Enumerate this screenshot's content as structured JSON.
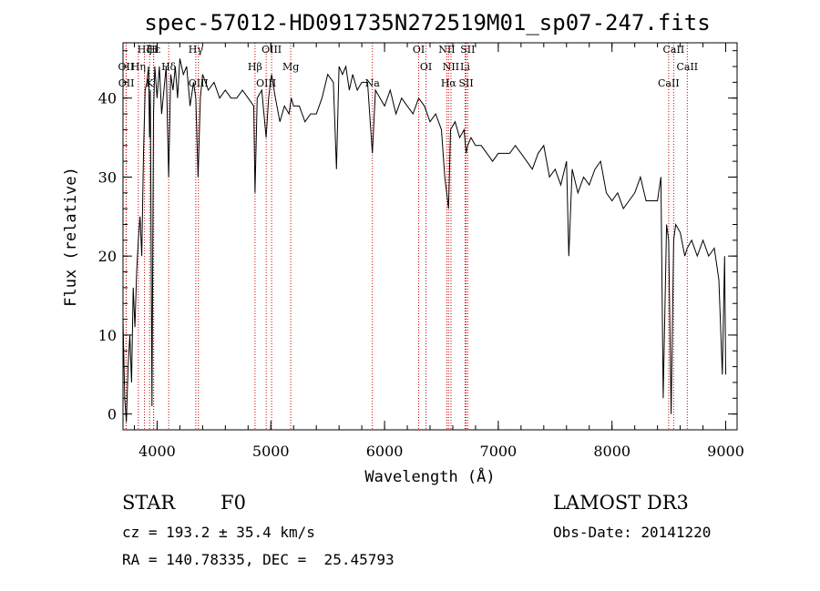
{
  "chart_data": {
    "type": "line",
    "title": "spec-57012-HD091735N272519M01_sp07-247.fits",
    "xlabel": "Wavelength (Å)",
    "ylabel": "Flux (relative)",
    "xlim": [
      3700,
      9100
    ],
    "ylim": [
      -2,
      47
    ],
    "x_ticks": [
      4000,
      5000,
      6000,
      7000,
      8000,
      9000
    ],
    "y_ticks": [
      0,
      10,
      20,
      30,
      40
    ],
    "series": [
      {
        "name": "flux",
        "x": [
          3700,
          3715,
          3730,
          3745,
          3760,
          3775,
          3790,
          3805,
          3820,
          3835,
          3850,
          3865,
          3880,
          3895,
          3910,
          3925,
          3933,
          3940,
          3955,
          3968,
          3980,
          4000,
          4020,
          4040,
          4060,
          4080,
          4101,
          4120,
          4140,
          4160,
          4180,
          4200,
          4230,
          4260,
          4290,
          4320,
          4340,
          4360,
          4380,
          4400,
          4450,
          4500,
          4550,
          4600,
          4650,
          4700,
          4750,
          4800,
          4850,
          4861,
          4880,
          4920,
          4959,
          4980,
          5007,
          5040,
          5080,
          5120,
          5160,
          5180,
          5200,
          5250,
          5300,
          5350,
          5400,
          5450,
          5500,
          5550,
          5577,
          5600,
          5630,
          5660,
          5690,
          5720,
          5760,
          5800,
          5850,
          5893,
          5920,
          5960,
          6000,
          6050,
          6100,
          6150,
          6200,
          6250,
          6300,
          6350,
          6400,
          6450,
          6500,
          6530,
          6563,
          6580,
          6620,
          6660,
          6700,
          6717,
          6731,
          6760,
          6800,
          6850,
          6900,
          6950,
          7000,
          7050,
          7100,
          7150,
          7200,
          7250,
          7300,
          7350,
          7400,
          7450,
          7500,
          7550,
          7600,
          7620,
          7650,
          7700,
          7750,
          7800,
          7850,
          7900,
          7950,
          8000,
          8050,
          8100,
          8150,
          8200,
          8250,
          8300,
          8350,
          8400,
          8430,
          8450,
          8480,
          8498,
          8520,
          8542,
          8560,
          8600,
          8640,
          8662,
          8700,
          8750,
          8800,
          8850,
          8900,
          8940,
          8970,
          8990,
          9000
        ],
        "values": [
          12,
          2,
          -1,
          6,
          10,
          4,
          16,
          11,
          18,
          22,
          25,
          20,
          33,
          41,
          42,
          44,
          35,
          41,
          1,
          38,
          44,
          40,
          44,
          38,
          41,
          44,
          30,
          43,
          41,
          44,
          40,
          45,
          43,
          44,
          39,
          42,
          40,
          30,
          40,
          43,
          41,
          42,
          40,
          41,
          40,
          40,
          41,
          40,
          39,
          28,
          40,
          41,
          35,
          40,
          43,
          40,
          37,
          39,
          38,
          40,
          39,
          39,
          37,
          38,
          38,
          40,
          43,
          42,
          31,
          44,
          43,
          44,
          41,
          43,
          41,
          42,
          42,
          33,
          41,
          40,
          39,
          41,
          38,
          40,
          39,
          38,
          40,
          39,
          37,
          38,
          36,
          30,
          26,
          36,
          37,
          35,
          36,
          33,
          34,
          35,
          34,
          34,
          33,
          32,
          33,
          33,
          33,
          34,
          33,
          32,
          31,
          33,
          34,
          30,
          31,
          29,
          32,
          20,
          31,
          28,
          30,
          29,
          31,
          32,
          28,
          27,
          28,
          26,
          27,
          28,
          30,
          27,
          27,
          27,
          30,
          2,
          24,
          22,
          0,
          22,
          24,
          23,
          20,
          21,
          22,
          20,
          22,
          20,
          21,
          17,
          5,
          20,
          5
        ]
      }
    ],
    "spectral_lines": [
      {
        "label": "Hζ",
        "wavelength": 3889
      },
      {
        "label": "OII",
        "wavelength": 3727
      },
      {
        "label": "OII",
        "wavelength": 3729
      },
      {
        "label": "Hε",
        "wavelength": 3970
      },
      {
        "label": "Hη",
        "wavelength": 3835
      },
      {
        "label": "K",
        "wavelength": 3934
      },
      {
        "label": "H",
        "wavelength": 3968
      },
      {
        "label": "Hδ",
        "wavelength": 4102
      },
      {
        "label": "OIII",
        "wavelength": 4363
      },
      {
        "label": "Hγ",
        "wavelength": 4340
      },
      {
        "label": "Hβ",
        "wavelength": 4861
      },
      {
        "label": "OIII",
        "wavelength": 4959
      },
      {
        "label": "OIII",
        "wavelength": 5007
      },
      {
        "label": "Mg",
        "wavelength": 5175
      },
      {
        "label": "Na",
        "wavelength": 5893
      },
      {
        "label": "OI",
        "wavelength": 6300
      },
      {
        "label": "OI",
        "wavelength": 6364
      },
      {
        "label": "Hα",
        "wavelength": 6563
      },
      {
        "label": "NII",
        "wavelength": 6548
      },
      {
        "label": "NII",
        "wavelength": 6584
      },
      {
        "label": "SII",
        "wavelength": 6717
      },
      {
        "label": "SII",
        "wavelength": 6731
      },
      {
        "label": "Li",
        "wavelength": 6708
      },
      {
        "label": "CaII",
        "wavelength": 8498
      },
      {
        "label": "CaII",
        "wavelength": 8542
      },
      {
        "label": "CaII",
        "wavelength": 8662
      }
    ],
    "line_color": "#cc0000",
    "grid": false
  },
  "info": {
    "object_type": "STAR",
    "subclass": "F0",
    "survey": "LAMOST DR3",
    "cz": "cz = 193.2 ± 35.4 km/s",
    "obs_date": "Obs-Date: 20141220",
    "coords": "RA = 140.78335, DEC =  25.45793"
  }
}
